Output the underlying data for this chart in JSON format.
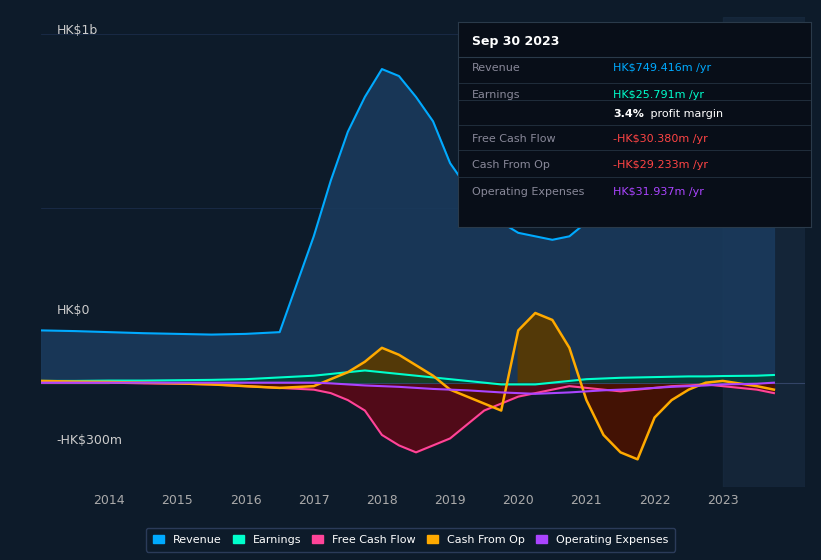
{
  "bg_color": "#0d1b2a",
  "plot_bg_color": "#0d1b2a",
  "ylabel_top": "HK$1b",
  "ylabel_mid": "HK$0",
  "ylabel_bot": "-HK$300m",
  "ylim": [
    -300,
    1050
  ],
  "years": [
    2013.0,
    2013.5,
    2014.0,
    2014.5,
    2015.0,
    2015.5,
    2016.0,
    2016.5,
    2017.0,
    2017.25,
    2017.5,
    2017.75,
    2018.0,
    2018.25,
    2018.5,
    2018.75,
    2019.0,
    2019.25,
    2019.5,
    2019.75,
    2020.0,
    2020.25,
    2020.5,
    2020.75,
    2021.0,
    2021.25,
    2021.5,
    2021.75,
    2022.0,
    2022.25,
    2022.5,
    2022.75,
    2023.0,
    2023.5,
    2023.75
  ],
  "revenue": [
    150,
    148,
    145,
    142,
    140,
    138,
    140,
    145,
    420,
    580,
    720,
    820,
    900,
    880,
    820,
    750,
    630,
    560,
    500,
    460,
    430,
    420,
    410,
    420,
    460,
    490,
    510,
    520,
    530,
    540,
    555,
    580,
    620,
    720,
    770
  ],
  "earnings": [
    5,
    5,
    6,
    6,
    7,
    8,
    10,
    15,
    20,
    25,
    30,
    35,
    30,
    25,
    20,
    15,
    10,
    5,
    0,
    -5,
    -5,
    -5,
    0,
    5,
    10,
    12,
    14,
    15,
    16,
    17,
    18,
    18,
    19,
    20,
    22
  ],
  "free_cash_flow": [
    0,
    0,
    0,
    -2,
    -3,
    -5,
    -10,
    -15,
    -20,
    -30,
    -50,
    -80,
    -150,
    -180,
    -200,
    -180,
    -160,
    -120,
    -80,
    -60,
    -40,
    -30,
    -20,
    -10,
    -15,
    -20,
    -25,
    -20,
    -15,
    -10,
    -8,
    -5,
    -10,
    -20,
    -30
  ],
  "cash_from_op": [
    5,
    3,
    2,
    0,
    -2,
    -5,
    -10,
    -15,
    -10,
    10,
    30,
    60,
    100,
    80,
    50,
    20,
    -20,
    -40,
    -60,
    -80,
    150,
    200,
    180,
    100,
    -50,
    -150,
    -200,
    -220,
    -100,
    -50,
    -20,
    0,
    5,
    -10,
    -20
  ],
  "op_expenses": [
    0,
    0,
    0,
    0,
    0,
    0,
    0,
    0,
    0,
    -2,
    -5,
    -8,
    -10,
    -12,
    -15,
    -18,
    -20,
    -22,
    -25,
    -28,
    -30,
    -32,
    -30,
    -28,
    -25,
    -22,
    -20,
    -18,
    -15,
    -12,
    -10,
    -8,
    -5,
    -3,
    0
  ],
  "revenue_color": "#00aaff",
  "earnings_color": "#00ffcc",
  "free_cash_flow_color": "#ff4499",
  "cash_from_op_color": "#ffaa00",
  "op_expenses_color": "#aa44ff",
  "revenue_fill": "#1a3a5c",
  "xtick_labels": [
    "2014",
    "2015",
    "2016",
    "2017",
    "2018",
    "2019",
    "2020",
    "2021",
    "2022",
    "2023"
  ],
  "xtick_positions": [
    2014,
    2015,
    2016,
    2017,
    2018,
    2019,
    2020,
    2021,
    2022,
    2023
  ],
  "info_box": {
    "title": "Sep 30 2023",
    "rows": [
      {
        "label": "Revenue",
        "value": "HK$749.416m /yr",
        "value_color": "#00aaff"
      },
      {
        "label": "Earnings",
        "value": "HK$25.791m /yr",
        "value_color": "#00ffcc"
      },
      {
        "label": "",
        "value": "3.4% profit margin",
        "value_color": "#ffffff"
      },
      {
        "label": "Free Cash Flow",
        "value": "-HK$30.380m /yr",
        "value_color": "#ff4444"
      },
      {
        "label": "Cash From Op",
        "value": "-HK$29.233m /yr",
        "value_color": "#ff4444"
      },
      {
        "label": "Operating Expenses",
        "value": "HK$31.937m /yr",
        "value_color": "#aa44ff"
      }
    ]
  },
  "legend": [
    {
      "label": "Revenue",
      "color": "#00aaff"
    },
    {
      "label": "Earnings",
      "color": "#00ffcc"
    },
    {
      "label": "Free Cash Flow",
      "color": "#ff4499"
    },
    {
      "label": "Cash From Op",
      "color": "#ffaa00"
    },
    {
      "label": "Operating Expenses",
      "color": "#aa44ff"
    }
  ]
}
